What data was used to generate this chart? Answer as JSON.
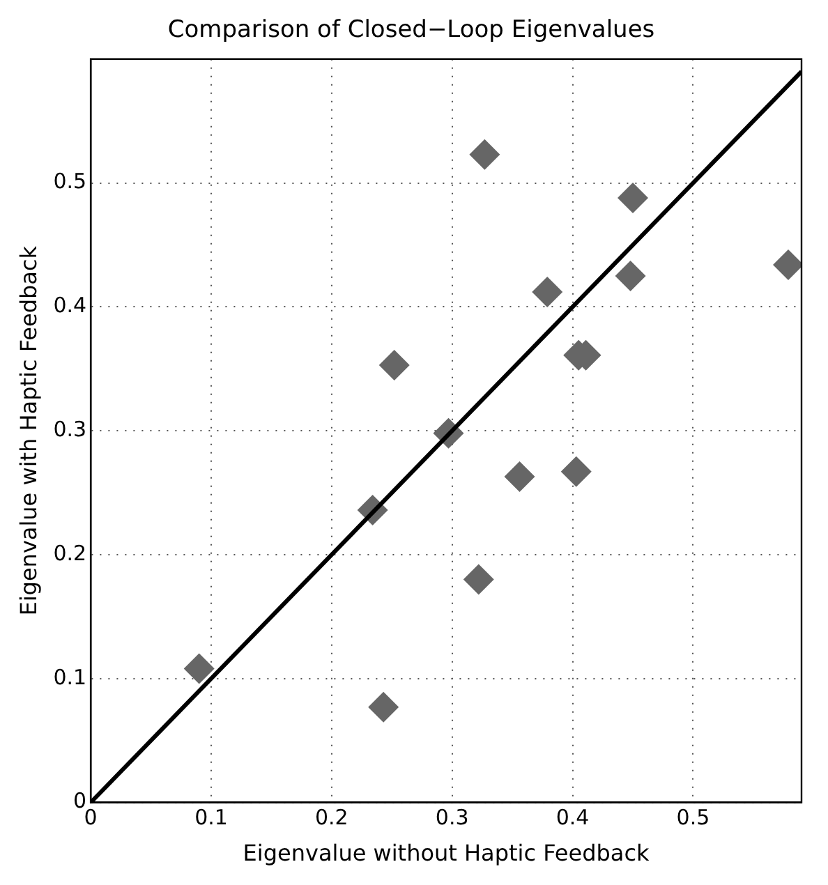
{
  "chart_data": {
    "type": "scatter",
    "title": "Comparison of Closed−Loop Eigenvalues",
    "xlabel": "Eigenvalue without Haptic Feedback",
    "ylabel": "Eigenvalue with Haptic Feedback",
    "xlim": [
      0,
      0.59
    ],
    "ylim": [
      0,
      0.6
    ],
    "xticks": [
      0,
      0.1,
      0.2,
      0.3,
      0.4,
      0.5
    ],
    "yticks": [
      0,
      0.1,
      0.2,
      0.3,
      0.4,
      0.5
    ],
    "grid": true,
    "legend": false,
    "series": [
      {
        "type": "scatter",
        "color": "#666666",
        "marker": "diamond",
        "x": [
          0.09,
          0.234,
          0.243,
          0.252,
          0.297,
          0.322,
          0.327,
          0.356,
          0.379,
          0.403,
          0.405,
          0.411,
          0.448,
          0.45,
          0.579
        ],
        "values": [
          0.108,
          0.236,
          0.077,
          0.353,
          0.298,
          0.18,
          0.523,
          0.263,
          0.412,
          0.267,
          0.361,
          0.361,
          0.425,
          0.488,
          0.434
        ]
      },
      {
        "type": "line",
        "color": "#000000",
        "marker": "none",
        "line_style": "solid",
        "x": [
          0,
          0.59
        ],
        "values": [
          0,
          0.59
        ]
      }
    ]
  }
}
